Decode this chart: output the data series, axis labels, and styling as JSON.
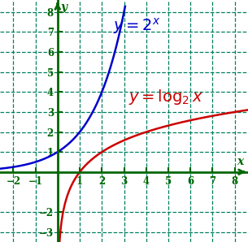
{
  "xlim": [
    -2.6,
    8.6
  ],
  "ylim": [
    -3.5,
    8.6
  ],
  "xticks": [
    -2,
    -1,
    1,
    2,
    3,
    4,
    5,
    6,
    7,
    8
  ],
  "yticks": [
    -3,
    -2,
    1,
    2,
    3,
    4,
    5,
    6,
    7,
    8
  ],
  "background_color": "#ffffff",
  "grid_color": "#008060",
  "axis_color": "#006600",
  "curve1_color": "#0000cc",
  "curve2_color": "#cc0000",
  "xlabel": "x",
  "ylabel": "y",
  "figsize": [
    3.05,
    2.98
  ],
  "dpi": 100
}
